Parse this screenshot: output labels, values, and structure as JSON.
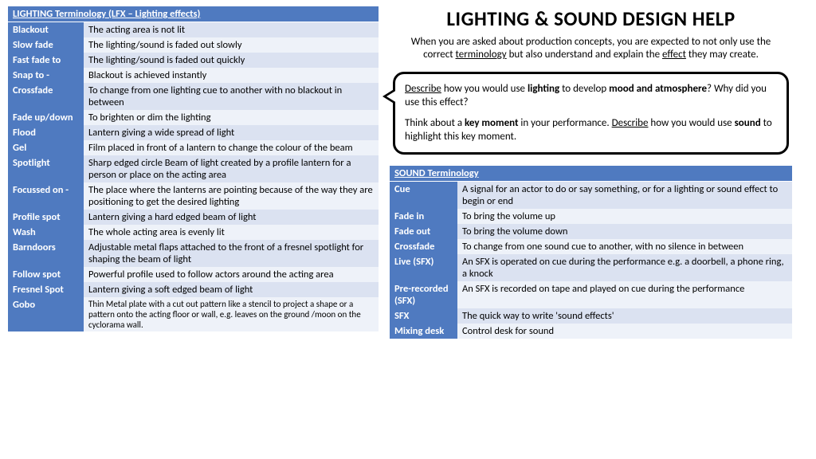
{
  "title": "LIGHTING & SOUND  DESIGN HELP",
  "intro_pre": "When you are asked about production concepts, you are expected to not only use the correct ",
  "intro_u1": "terminology",
  "intro_mid": " but also understand and explain the ",
  "intro_u2": "effect",
  "intro_post": " they may create.",
  "lighting_header": "LIGHTING Terminology (LFX – Lighting effects)",
  "lighting": [
    {
      "t": "Blackout",
      "d": "The acting area is not lit",
      "a": true
    },
    {
      "t": "Slow fade",
      "d": "The lighting/sound is faded out slowly",
      "a": false
    },
    {
      "t": "Fast fade to",
      "d": "The lighting/sound is faded out quickly",
      "a": true
    },
    {
      "t": "Snap to -",
      "d": "Blackout is achieved instantly",
      "a": false
    },
    {
      "t": "Crossfade",
      "d": "To change from one lighting cue to another with no blackout in between",
      "a": true
    },
    {
      "t": "Fade up/down",
      "d": "To brighten or dim the lighting",
      "a": false
    },
    {
      "t": "Flood",
      "d": "Lantern giving a wide spread of light",
      "a": true
    },
    {
      "t": "Gel",
      "d": "Film placed in front of a lantern to change the colour of the beam",
      "a": false
    },
    {
      "t": "Spotlight",
      "d": "Sharp edged circle Beam of light created by a profile lantern for a person or place on the acting area",
      "a": true
    },
    {
      "t": "Focussed on -",
      "d": "The place where the lanterns are pointing because of the way they are positioning to get the desired lighting",
      "a": false
    },
    {
      "t": "Profile spot",
      "d": "Lantern giving a hard edged beam of light",
      "a": true
    },
    {
      "t": "Wash",
      "d": "The whole acting area is evenly lit",
      "a": false
    },
    {
      "t": "Barndoors",
      "d": "Adjustable metal flaps attached to the front of a fresnel spotlight for shaping the beam of light",
      "a": true
    },
    {
      "t": "Follow spot",
      "d": "Powerful profile used to follow actors around the acting area",
      "a": false
    },
    {
      "t": "Fresnel Spot",
      "d": "Lantern giving a soft edged beam of light",
      "a": true
    },
    {
      "t": "Gobo",
      "d": "Thin Metal plate with a cut out pattern like a stencil to project a shape or a pattern onto the acting floor or wall, e.g. leaves on the ground /moon on the cyclorama wall.",
      "a": false,
      "gob": true
    }
  ],
  "sound_header": "SOUND Terminology",
  "sound": [
    {
      "t": "Cue",
      "d": "A signal for an actor to do or say something, or for a lighting or sound effect to begin or end",
      "a": true
    },
    {
      "t": "Fade in",
      "d": "To bring the volume up",
      "a": false
    },
    {
      "t": "Fade out",
      "d": "To bring the volume down",
      "a": true
    },
    {
      "t": "Crossfade",
      "d": "To change from one sound cue to another, with no silence in between",
      "a": false
    },
    {
      "t": "Live (SFX)",
      "d": "An SFX is operated on cue during the performance e.g. a doorbell, a phone ring, a knock",
      "a": true
    },
    {
      "t": "Pre-recorded (SFX)",
      "d": "An SFX is recorded on tape and played on cue during the performance",
      "a": false
    },
    {
      "t": "SFX",
      "d": "The quick way to write 'sound effects'",
      "a": true
    },
    {
      "t": "Mixing desk",
      "d": "Control desk for sound",
      "a": false
    }
  ],
  "callout": {
    "p1_u": "Describe",
    "p1_a": " how you would use ",
    "p1_b1": "lighting",
    "p1_b": " to develop ",
    "p1_b2": "mood and atmosphere",
    "p1_c": "? Why did you use this effect?",
    "p2_a": "Think about a ",
    "p2_b1": "key moment",
    "p2_b": " in your performance. ",
    "p2_u": "Describe",
    "p2_c": " how you would use ",
    "p2_b2": "sound",
    "p2_d": " to highlight this key moment."
  }
}
